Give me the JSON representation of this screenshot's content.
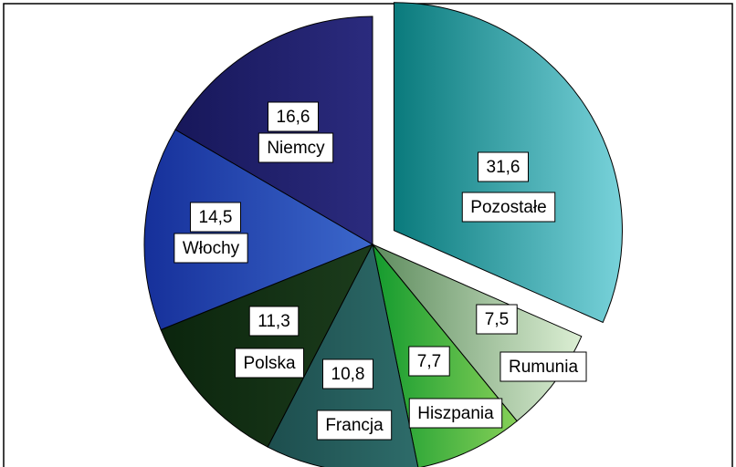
{
  "chart_data": {
    "type": "pie",
    "categories": [
      "Pozostałe",
      "Rumunia",
      "Hiszpania",
      "Francja",
      "Polska",
      "Włochy",
      "Niemcy"
    ],
    "values": [
      31.6,
      7.5,
      7.7,
      10.8,
      11.3,
      14.5,
      16.6
    ],
    "value_labels": [
      "31,6",
      "7,5",
      "7,7",
      "10,8",
      "11,3",
      "14,5",
      "16,6"
    ],
    "colors": [
      [
        "#0a7a7c",
        "#78d2da"
      ],
      [
        "#5e8c5e",
        "#dcefd4"
      ],
      [
        "#139a2e",
        "#86d058"
      ],
      [
        "#1d4e4e",
        "#2e6c6a"
      ],
      [
        "#0b250d",
        "#1c3c1c"
      ],
      [
        "#16309a",
        "#3c68cc"
      ],
      [
        "#17175a",
        "#2b2b7e"
      ]
    ],
    "exploded": [
      0
    ]
  }
}
